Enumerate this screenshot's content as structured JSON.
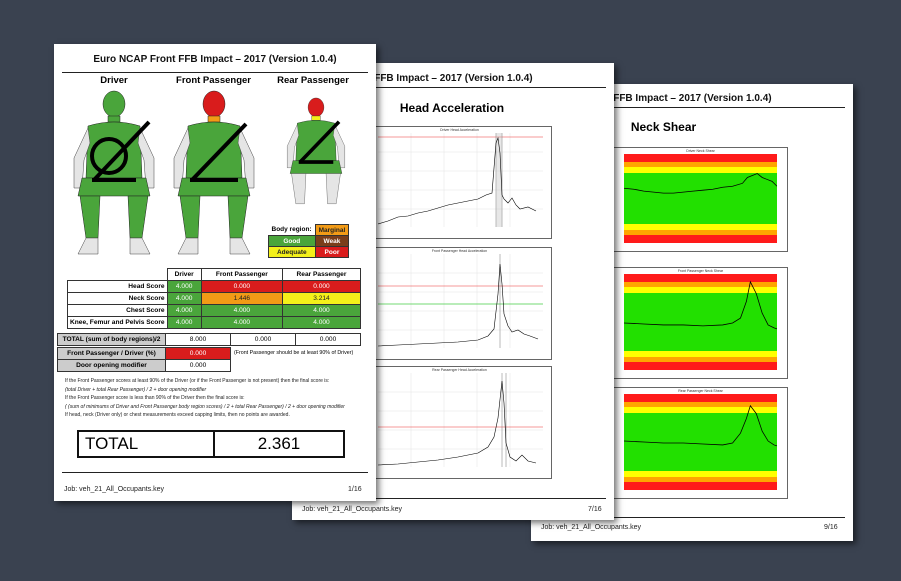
{
  "title": "Euro NCAP Front FFB Impact – 2017 (Version 1.0.4)",
  "pages": [
    {
      "job": "Job: veh_21_All_Occupants.key",
      "page_number": "1/16",
      "occupants": [
        "Driver",
        "Front Passenger",
        "Rear Passenger"
      ],
      "legend": {
        "label": "Body region:",
        "marginal": "Marginal",
        "good": "Good",
        "weak": "Weak",
        "adequate": "Adequate",
        "poor": "Poor"
      },
      "table": {
        "headers": [
          "Driver",
          "Front Passenger",
          "Rear Passenger"
        ],
        "rows": [
          {
            "label": "Head Score",
            "values": [
              "4.000",
              "0.000",
              "0.000"
            ],
            "colors": [
              "good",
              "poor",
              "poor"
            ]
          },
          {
            "label": "Neck Score",
            "values": [
              "4.000",
              "1.446",
              "3.214"
            ],
            "colors": [
              "good",
              "marginal",
              "adequate"
            ]
          },
          {
            "label": "Chest Score",
            "values": [
              "4.000",
              "4.000",
              "4.000"
            ],
            "colors": [
              "good",
              "good",
              "good"
            ]
          },
          {
            "label": "Knee, Femur and Pelvis Score",
            "values": [
              "4.000",
              "4.000",
              "4.000"
            ],
            "colors": [
              "good",
              "good",
              "good"
            ]
          }
        ],
        "total_label": "TOTAL (sum of body regions)/2",
        "total_values": [
          "8.000",
          "0.000",
          "0.000"
        ],
        "ratio_label": "Front Passenger / Driver (%)",
        "ratio_value": "0.000",
        "ratio_note": "(Front Passenger should be at least 90% of Driver)",
        "door_label": "Door opening modifier",
        "door_value": "0.000"
      },
      "notes": [
        "If the Front Passenger scores at least 90% of the Driver (or if the Front Passenger is not present) then the final score is:",
        "(total Driver + total Rear Passenger) / 2 + door opening modifier",
        "If the Front Passenger score is less than 90% of the Driver then the final score is:",
        "( (sum of minimums of Driver and Front Passenger body region scores) / 2 + total Rear Passenger) / 2 + door opening modifier",
        "If head, neck (Driver only) or chest measurements exceed capping limits, then no points are awarded."
      ],
      "total_label": "TOTAL",
      "total_value": "2.361"
    },
    {
      "title": "Head Acceleration",
      "job": "Job: veh_21_All_Occupants.key",
      "page_number": "7/16",
      "graphs": [
        "Driver Head Acceleration",
        "Front Passenger Head Acceleration",
        "Rear Passenger Head Acceleration"
      ]
    },
    {
      "title": "Neck Shear",
      "job": "Job: veh_21_All_Occupants.key",
      "page_number": "9/16",
      "graphs": [
        "Driver Neck Shear",
        "Front Passenger Neck Shear",
        "Rear Passenger Neck Shear"
      ]
    }
  ],
  "colors": {
    "good": "#4aa53b",
    "adequate": "#f4f01a",
    "marginal": "#f29b16",
    "weak": "#7a3e1a",
    "poor": "#d91c1c",
    "band_green": "#22e000",
    "band_yellow": "#ffff00",
    "band_orange": "#ffa500",
    "band_red": "#ff1a1a",
    "background": "#3a4250"
  }
}
